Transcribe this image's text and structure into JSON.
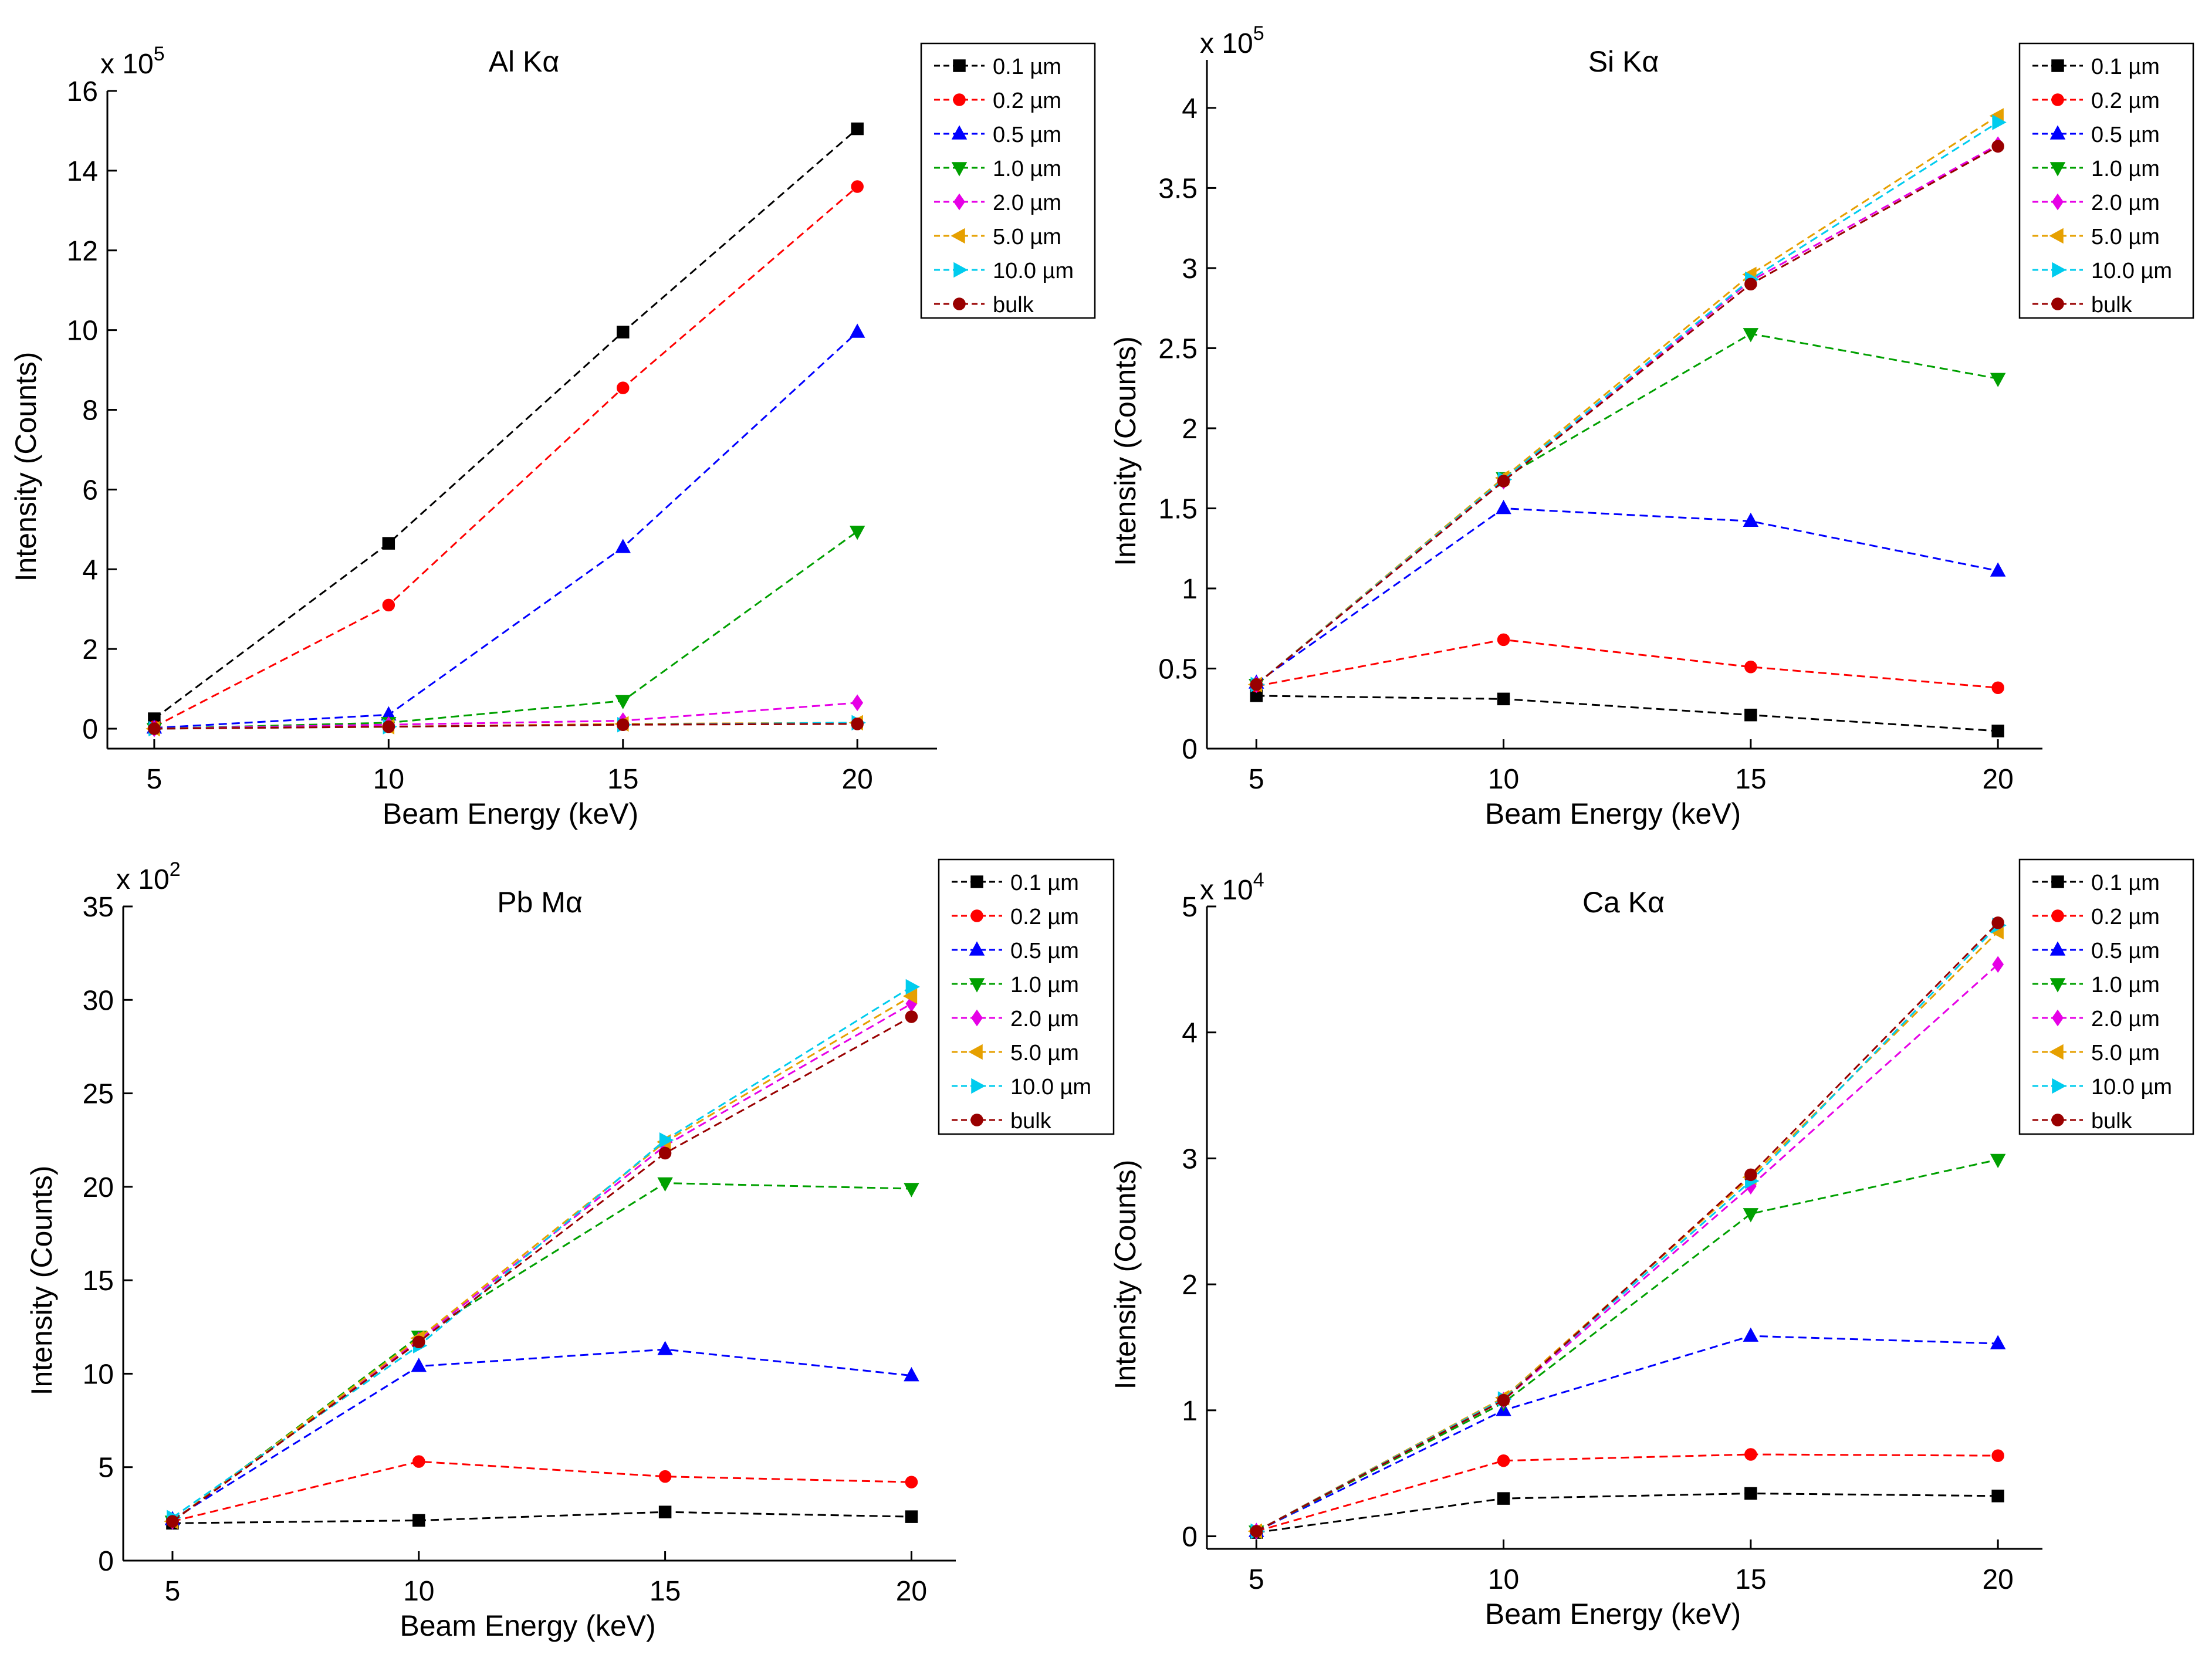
{
  "colors": {
    "0.1 µm": "#000000",
    "0.2 µm": "#ff0000",
    "0.5 µm": "#0000ff",
    "1.0 µm": "#00a000",
    "2.0 µm": "#e600e6",
    "5.0 µm": "#e6a000",
    "10.0 µm": "#00ccee",
    "bulk": "#990000"
  },
  "markers": {
    "0.1 µm": "square",
    "0.2 µm": "circle",
    "0.5 µm": "triangle-up",
    "1.0 µm": "triangle-down",
    "2.0 µm": "diamond",
    "5.0 µm": "triangle-left",
    "10.0 µm": "triangle-right",
    "bulk": "circle"
  },
  "chart_data": [
    {
      "type": "line",
      "title": "Al Kα",
      "xlabel": "Beam Energy (keV)",
      "ylabel": "Intensity (Counts)",
      "multiplier": "x 10",
      "exponent": "5",
      "x": [
        5,
        10,
        15,
        20
      ],
      "xlim": [
        4,
        21.7
      ],
      "ylim": [
        -0.5,
        16
      ],
      "yticks": [
        0,
        2,
        4,
        6,
        8,
        10,
        12,
        14,
        16
      ],
      "yticklabels": [
        "0",
        "2",
        "4",
        "6",
        "8",
        "10",
        "12",
        "14",
        "16"
      ],
      "series": [
        {
          "name": "0.1 µm",
          "values": [
            0.25,
            4.65,
            9.95,
            15.05
          ]
        },
        {
          "name": "0.2 µm",
          "values": [
            0.05,
            3.1,
            8.55,
            13.6
          ]
        },
        {
          "name": "0.5 µm",
          "values": [
            0.02,
            0.35,
            4.55,
            9.95
          ]
        },
        {
          "name": "1.0 µm",
          "values": [
            0.0,
            0.15,
            0.7,
            4.95
          ]
        },
        {
          "name": "2.0 µm",
          "values": [
            0.0,
            0.1,
            0.2,
            0.65
          ]
        },
        {
          "name": "5.0 µm",
          "values": [
            0.0,
            0.05,
            0.12,
            0.15
          ]
        },
        {
          "name": "10.0 µm",
          "values": [
            0.0,
            0.05,
            0.1,
            0.15
          ]
        },
        {
          "name": "bulk",
          "values": [
            0.0,
            0.05,
            0.1,
            0.12
          ]
        }
      ]
    },
    {
      "type": "line",
      "title": "Si Kα",
      "xlabel": "Beam Energy (keV)",
      "ylabel": "Intensity (Counts)",
      "multiplier": "x 10",
      "exponent": "5",
      "x": [
        5,
        10,
        15,
        20
      ],
      "xlim": [
        4,
        20.9
      ],
      "ylim": [
        0,
        4.3
      ],
      "yticks": [
        0,
        0.5,
        1,
        1.5,
        2,
        2.5,
        3,
        3.5,
        4
      ],
      "yticklabels": [
        "0",
        "0.5",
        "1",
        "1.5",
        "2",
        "2.5",
        "3",
        "3.5",
        "4"
      ],
      "series": [
        {
          "name": "0.1 µm",
          "values": [
            0.33,
            0.31,
            0.21,
            0.11
          ]
        },
        {
          "name": "0.2 µm",
          "values": [
            0.39,
            0.68,
            0.51,
            0.38
          ]
        },
        {
          "name": "0.5 µm",
          "values": [
            0.41,
            1.5,
            1.42,
            1.11
          ]
        },
        {
          "name": "1.0 µm",
          "values": [
            0.4,
            1.69,
            2.59,
            2.31
          ]
        },
        {
          "name": "2.0 µm",
          "values": [
            0.4,
            1.67,
            2.92,
            3.77
          ]
        },
        {
          "name": "5.0 µm",
          "values": [
            0.4,
            1.69,
            2.96,
            3.95
          ]
        },
        {
          "name": "10.0 µm",
          "values": [
            0.4,
            1.68,
            2.93,
            3.91
          ]
        },
        {
          "name": "bulk",
          "values": [
            0.4,
            1.67,
            2.9,
            3.76
          ]
        }
      ]
    },
    {
      "type": "line",
      "title": "Pb Mα",
      "xlabel": "Beam Energy (keV)",
      "ylabel": "Intensity (Counts)",
      "multiplier": "x 10",
      "exponent": "2",
      "x": [
        5,
        10,
        15,
        20
      ],
      "xlim": [
        4,
        20.9
      ],
      "ylim": [
        0,
        35
      ],
      "yticks": [
        0,
        5,
        10,
        15,
        20,
        25,
        30,
        35
      ],
      "yticklabels": [
        "0",
        "5",
        "10",
        "15",
        "20",
        "25",
        "30",
        "35"
      ],
      "series": [
        {
          "name": "0.1 µm",
          "values": [
            2.0,
            2.15,
            2.6,
            2.35
          ]
        },
        {
          "name": "0.2 µm",
          "values": [
            2.1,
            5.3,
            4.5,
            4.2
          ]
        },
        {
          "name": "0.5 µm",
          "values": [
            2.2,
            10.4,
            11.3,
            9.9
          ]
        },
        {
          "name": "1.0 µm",
          "values": [
            2.1,
            12.0,
            20.2,
            19.9
          ]
        },
        {
          "name": "2.0 µm",
          "values": [
            2.1,
            11.8,
            22.2,
            29.8
          ]
        },
        {
          "name": "5.0 µm",
          "values": [
            2.1,
            11.9,
            22.4,
            30.2
          ]
        },
        {
          "name": "10.0 µm",
          "values": [
            2.3,
            11.5,
            22.5,
            30.7
          ]
        },
        {
          "name": "bulk",
          "values": [
            2.1,
            11.7,
            21.8,
            29.1
          ]
        }
      ]
    },
    {
      "type": "line",
      "title": "Ca Kα",
      "xlabel": "Beam Energy (keV)",
      "ylabel": "Intensity (Counts)",
      "multiplier": "x 10",
      "exponent": "4",
      "x": [
        5,
        10,
        15,
        20
      ],
      "xlim": [
        4,
        20.9
      ],
      "ylim": [
        -0.1,
        5
      ],
      "yticks": [
        0,
        1,
        2,
        3,
        4,
        5
      ],
      "yticklabels": [
        "0",
        "1",
        "2",
        "3",
        "4",
        "5"
      ],
      "series": [
        {
          "name": "0.1 µm",
          "values": [
            0.03,
            0.3,
            0.34,
            0.32
          ]
        },
        {
          "name": "0.2 µm",
          "values": [
            0.04,
            0.6,
            0.65,
            0.64
          ]
        },
        {
          "name": "0.5 µm",
          "values": [
            0.04,
            1.0,
            1.59,
            1.53
          ]
        },
        {
          "name": "1.0 µm",
          "values": [
            0.04,
            1.06,
            2.56,
            2.99
          ]
        },
        {
          "name": "2.0 µm",
          "values": [
            0.04,
            1.08,
            2.78,
            4.54
          ]
        },
        {
          "name": "5.0 µm",
          "values": [
            0.04,
            1.1,
            2.85,
            4.8
          ]
        },
        {
          "name": "10.0 µm",
          "values": [
            0.04,
            1.09,
            2.82,
            4.85
          ]
        },
        {
          "name": "bulk",
          "values": [
            0.04,
            1.08,
            2.87,
            4.87
          ]
        }
      ]
    }
  ]
}
